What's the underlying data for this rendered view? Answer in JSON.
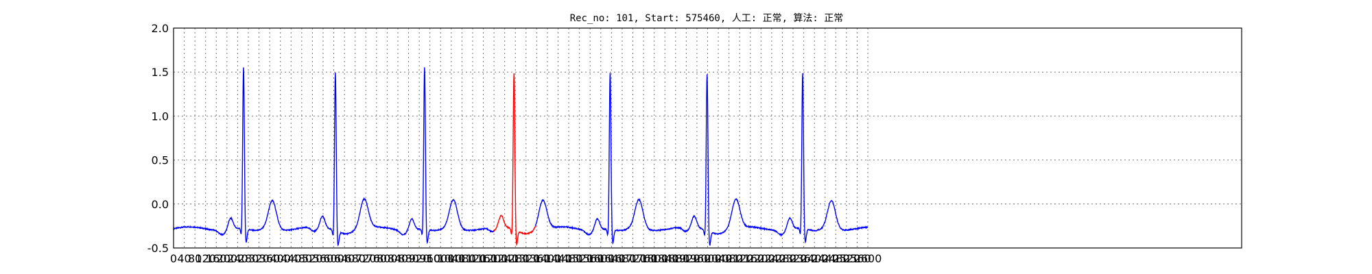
{
  "chart_data": {
    "type": "line",
    "title": "Rec_no: 101, Start: 575460, 人工: 正常, 算法: 正常",
    "xlabel": "",
    "ylabel": "",
    "xlim": [
      0,
      4000
    ],
    "ylim": [
      -0.5,
      2.0
    ],
    "grid": true,
    "x_ticks": [
      0,
      40,
      80,
      120,
      160,
      200,
      240,
      280,
      320,
      360,
      400,
      440,
      480,
      520,
      560,
      600,
      640,
      680,
      720,
      760,
      800,
      840,
      880,
      920,
      960,
      1000,
      1040,
      1080,
      1120,
      1160,
      1200,
      1240,
      1280,
      1320,
      1360,
      1400,
      1440,
      1480,
      1520,
      1560,
      1600,
      1640,
      1680,
      1720,
      1760,
      1800,
      1840,
      1880,
      1920,
      1960,
      2000,
      2040,
      2080,
      2120,
      2160,
      2200,
      2240,
      2280,
      2320,
      2360,
      2400,
      2440,
      2480,
      2520,
      2560,
      2600
    ],
    "y_ticks": [
      "-0.5",
      "0.0",
      "0.5",
      "1.0",
      "1.5",
      "2.0"
    ],
    "y_tick_values": [
      -0.5,
      0.0,
      0.5,
      1.0,
      1.5,
      2.0
    ],
    "segment_colors": {
      "normal": "#0000ff",
      "highlight": "#ff0000"
    },
    "beat_peaks_x": [
      262,
      606,
      940,
      1275,
      1635,
      1998,
      2356
    ],
    "peak_heights": [
      1.55,
      1.52,
      1.56,
      1.5,
      1.5,
      1.5,
      1.49
    ],
    "highlight_range_x": [
      1200,
      1355
    ],
    "signal_end_x": 2600
  }
}
